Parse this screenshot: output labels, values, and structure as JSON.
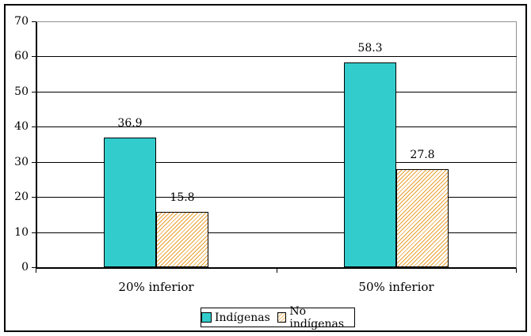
{
  "chart_data": {
    "type": "bar",
    "title": "",
    "xlabel": "",
    "ylabel": "",
    "categories": [
      "20% inferior",
      "50% inferior"
    ],
    "series": [
      {
        "name": "Indígenas",
        "values": [
          36.9,
          58.3
        ],
        "color": "#33CCCC",
        "pattern": "solid"
      },
      {
        "name": "No indígenas",
        "values": [
          15.8,
          27.8
        ],
        "color": "#E8A030",
        "pattern": "diagonal-hatch"
      }
    ],
    "value_labels": [
      "36.9",
      "58.3",
      "15.8",
      "27.8"
    ],
    "ylim": [
      0,
      70
    ],
    "yticks": [
      0,
      10,
      20,
      30,
      40,
      50,
      60,
      70
    ],
    "grid": true,
    "gridline_color": "#000000",
    "plot_border_gray": "#909090",
    "legend_position": "bottom-center",
    "legend_labels": [
      "Indígenas",
      "No indígenas"
    ]
  },
  "colors": {
    "background": "#FFFFFF",
    "chart_border": "#000000",
    "teal_fill": "#33CCCC",
    "hatch_orange": "#E8A030",
    "axis": "#000000",
    "top_right_plot_border": "#909090"
  }
}
